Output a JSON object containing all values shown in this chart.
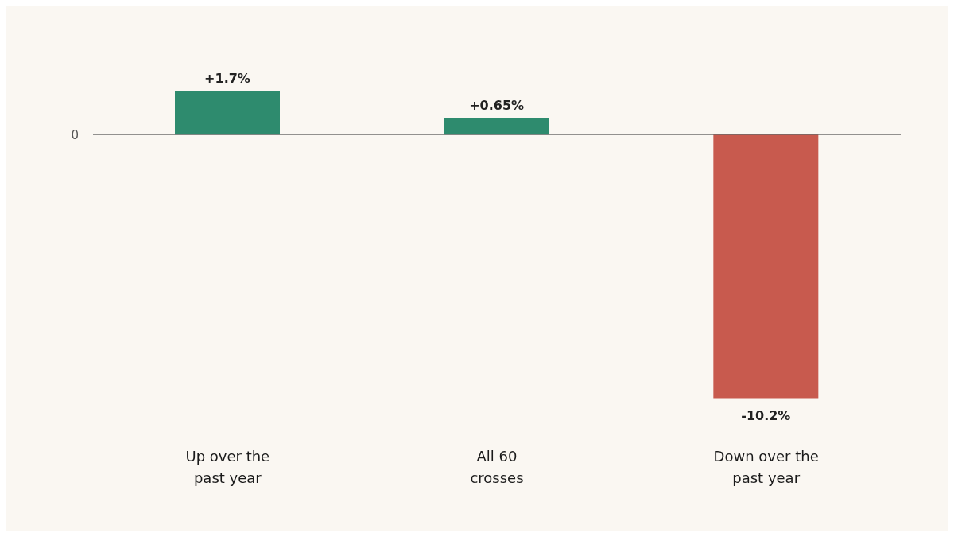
{
  "chart_data": {
    "type": "bar",
    "categories": [
      "Up over the past year",
      "All 60 crosses",
      "Down over the past year"
    ],
    "values": [
      1.7,
      0.65,
      -10.2
    ],
    "colors": [
      "#2e8b6e",
      "#2e8b6e",
      "#c85a4e"
    ],
    "value_labels": [
      "+1.7%",
      "+0.65%",
      "-10.2%"
    ],
    "annotations": [
      "0"
    ]
  }
}
